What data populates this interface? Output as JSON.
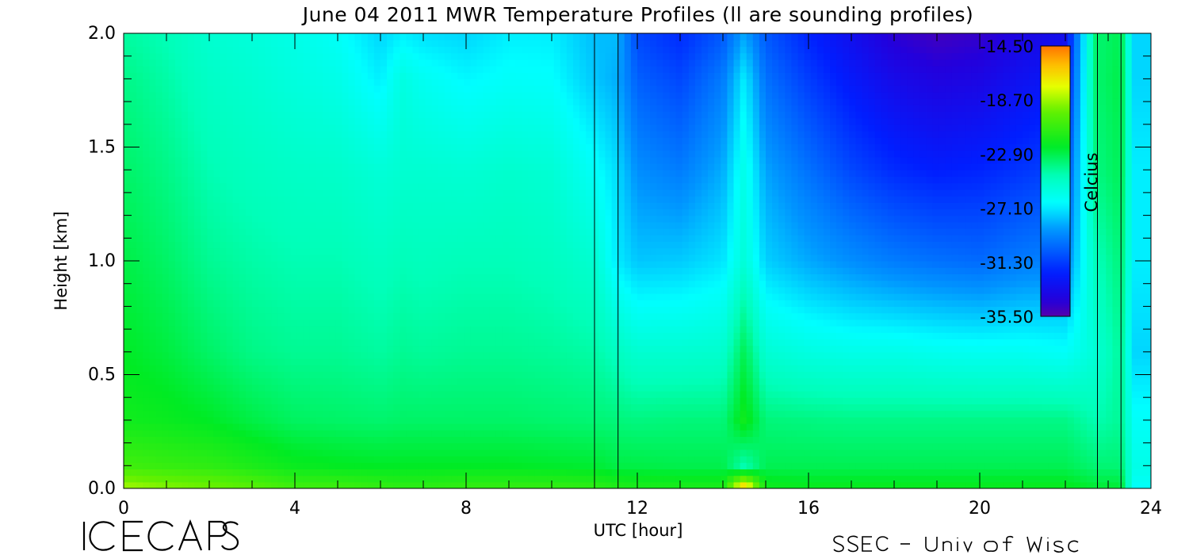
{
  "chart_data": {
    "type": "heatmap",
    "title": "June 04 2011 MWR Temperature Profiles (ll are sounding profiles)",
    "xlabel": "UTC [hour]",
    "ylabel": "Height [km]",
    "xlim": [
      0,
      24
    ],
    "ylim": [
      0,
      2.0
    ],
    "x_ticks": [
      "0",
      "4",
      "8",
      "12",
      "16",
      "20",
      "24"
    ],
    "y_ticks": [
      "0.0",
      "0.5",
      "1.0",
      "1.5",
      "2.0"
    ],
    "colorbar": {
      "label": "Celcius",
      "ticks": [
        "-14.50",
        "-18.70",
        "-22.90",
        "-27.10",
        "-31.30",
        "-35.50"
      ],
      "range": [
        -35.5,
        -14.5
      ],
      "colormap": "rainbow"
    },
    "sounding_times_hour": [
      11.0,
      11.55,
      22.75,
      23.3
    ],
    "grid_hours": [
      0,
      1,
      2,
      3,
      4,
      5,
      6,
      6.5,
      7,
      8,
      9,
      10,
      11,
      11.5,
      12,
      13,
      14,
      14.5,
      15,
      16,
      17,
      18,
      19,
      20,
      21,
      22,
      22.7,
      23.3,
      23.6,
      24
    ],
    "grid_heights_km": [
      0,
      0.1,
      0.3,
      0.6,
      1.0,
      1.4,
      1.8,
      2.0
    ],
    "temperature_celsius": [
      [
        -18.5,
        -19.0,
        -19.3,
        -19.8,
        -20.5,
        -20.5,
        -20.8,
        -21.0,
        -21.0,
        -20.8,
        -20.8,
        -20.8,
        -21.0,
        -21.3,
        -21.5,
        -21.5,
        -21.5,
        -15.5,
        -21.8,
        -22.0,
        -22.0,
        -22.0,
        -22.0,
        -22.0,
        -22.0,
        -22.0,
        -22.5,
        -22.5,
        -26.5,
        -26.5
      ],
      [
        -20.5,
        -20.8,
        -21.0,
        -21.5,
        -22.0,
        -22.2,
        -22.3,
        -22.3,
        -22.3,
        -22.3,
        -22.3,
        -22.4,
        -22.5,
        -22.8,
        -22.8,
        -22.9,
        -22.9,
        -24.5,
        -23.0,
        -23.0,
        -23.0,
        -23.0,
        -23.0,
        -23.0,
        -23.0,
        -23.0,
        -23.5,
        -23.5,
        -26.0,
        -26.0
      ],
      [
        -21.8,
        -22.0,
        -22.3,
        -22.8,
        -23.2,
        -23.3,
        -23.4,
        -23.3,
        -23.3,
        -23.3,
        -23.3,
        -23.4,
        -23.5,
        -23.6,
        -23.7,
        -23.6,
        -23.6,
        -21.8,
        -23.6,
        -23.7,
        -23.8,
        -23.8,
        -23.8,
        -23.8,
        -23.8,
        -23.8,
        -24.5,
        -24.0,
        -26.5,
        -26.5
      ],
      [
        -22.3,
        -22.7,
        -23.3,
        -23.8,
        -24.0,
        -24.0,
        -24.2,
        -24.0,
        -24.1,
        -24.0,
        -24.0,
        -24.1,
        -24.3,
        -24.8,
        -25.3,
        -25.3,
        -25.2,
        -23.0,
        -25.4,
        -25.8,
        -26.0,
        -26.0,
        -26.2,
        -26.3,
        -26.3,
        -26.5,
        -25.5,
        -24.0,
        -27.5,
        -27.5
      ],
      [
        -22.8,
        -23.3,
        -24.0,
        -24.3,
        -24.5,
        -24.5,
        -24.8,
        -24.6,
        -24.7,
        -24.6,
        -24.6,
        -24.8,
        -25.3,
        -27.0,
        -27.8,
        -27.7,
        -27.2,
        -25.5,
        -27.6,
        -28.4,
        -29.0,
        -29.5,
        -29.8,
        -30.0,
        -29.5,
        -29.3,
        -24.8,
        -23.5,
        -27.0,
        -27.0
      ],
      [
        -23.3,
        -23.8,
        -24.5,
        -24.8,
        -25.0,
        -25.1,
        -25.5,
        -25.3,
        -25.3,
        -25.4,
        -25.2,
        -25.4,
        -26.5,
        -27.3,
        -29.0,
        -29.5,
        -28.3,
        -26.0,
        -28.5,
        -29.8,
        -31.0,
        -31.8,
        -32.2,
        -32.0,
        -31.5,
        -31.0,
        -23.8,
        -23.0,
        -27.0,
        -27.0
      ],
      [
        -23.8,
        -24.3,
        -25.0,
        -25.3,
        -25.7,
        -26.0,
        -27.0,
        -25.8,
        -26.3,
        -26.8,
        -26.5,
        -26.6,
        -27.8,
        -28.3,
        -30.3,
        -31.0,
        -29.5,
        -27.0,
        -29.8,
        -31.3,
        -32.5,
        -33.5,
        -34.0,
        -33.8,
        -33.0,
        -32.5,
        -23.5,
        -22.8,
        -27.5,
        -27.5
      ],
      [
        -24.2,
        -24.6,
        -25.3,
        -25.6,
        -26.0,
        -26.5,
        -27.5,
        -27.0,
        -27.3,
        -27.5,
        -27.0,
        -27.0,
        -28.0,
        -28.0,
        -31.0,
        -31.8,
        -30.5,
        -28.5,
        -30.5,
        -32.0,
        -33.2,
        -34.5,
        -35.0,
        -34.7,
        -33.8,
        -33.3,
        -23.5,
        -23.0,
        -27.5,
        -27.5
      ]
    ]
  }
}
